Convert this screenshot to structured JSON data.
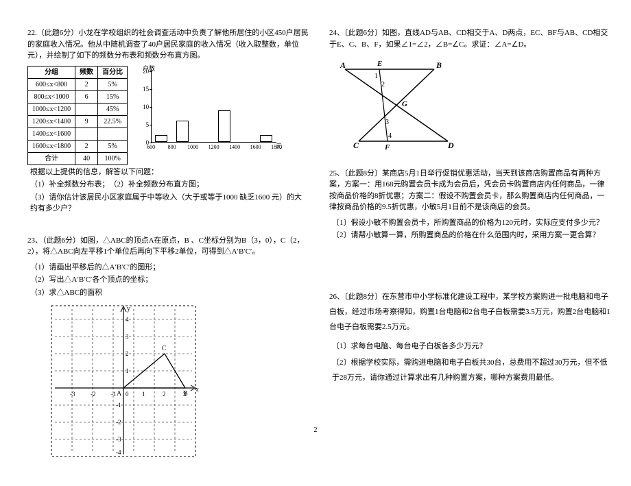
{
  "left": {
    "p22": {
      "title": "22.（此题6分）小龙在学校组织的社会调查活动中负责了解他所居住的小区450户居民的家庭收入情况。他从中随机调查了40户居民家庭的收入情况（收入取整数，单位 元），并绘制了如下的频数分布表和频数分布直方图。",
      "table_head": [
        "分组",
        "频数",
        "百分比"
      ],
      "rows": [
        [
          "600≤x<800",
          "2",
          "5%"
        ],
        [
          "800≤x<1000",
          "6",
          "15%"
        ],
        [
          "1000≤x<1200",
          "",
          "45%"
        ],
        [
          "1200≤x<1400",
          "9",
          "22.5%"
        ],
        [
          "1400≤x<1600",
          "",
          ""
        ],
        [
          "1600≤x<1800",
          "2",
          "5%"
        ],
        [
          "合计",
          "40",
          "100%"
        ]
      ],
      "hint": "根据以上提供的信息，解答以下问题：",
      "q1": "（1）补全频数分布表；　（2）补全频数分布直方图；",
      "q3": "（3）请你估计该居民小区家庭属于中等收入（大于或等于1000 缺乏1600 元）的大约有多少户？",
      "chart": {
        "ylabel": "户数",
        "xlabel": "元",
        "yticks": [
          0,
          5,
          10,
          15,
          20
        ],
        "xticks": [
          600,
          800,
          1000,
          1200,
          1400,
          1600,
          1800
        ],
        "ymax": 20,
        "bars": [
          {
            "x": 700,
            "h": 2
          },
          {
            "x": 900,
            "h": 6
          },
          {
            "x": 1300,
            "h": 9
          },
          {
            "x": 1700,
            "h": 2
          }
        ]
      }
    },
    "p23": {
      "title": "23、（此题6分）如图，△ABC的顶点A在原点，B 、C坐标分别为B（3，0），C（2，2），将△ABC向左平移1个单位后再向下平移2单位，可得到△A′B′C′。",
      "q1": "（1）请画出平移后的△A′B′C′的图形；",
      "q2": "（2）写出△A′B′C′各个顶点的坐标；",
      "q3": "（3）求△ABC的面积",
      "grid": {
        "xlabel": "x",
        "ylabel": "y",
        "xrange": [
          -3,
          3
        ],
        "yrange": [
          -4,
          4
        ],
        "pts": {
          "A": [
            0,
            0
          ],
          "B": [
            3,
            0
          ],
          "C": [
            2,
            2
          ]
        },
        "labels": {
          "A": "A",
          "B": "B",
          "C": "C"
        },
        "xticks": [
          "−3",
          "−2",
          "−1",
          "0",
          "1",
          "2",
          "3"
        ],
        "yticks_neg": [
          "−1",
          "−2",
          "−3",
          "−4"
        ],
        "yticks_pos": [
          "1",
          "2",
          "3",
          "4"
        ]
      }
    }
  },
  "right": {
    "p24": {
      "title": "24、〔此题6分〕如图，直线AD与AB、CD相交于A、D两点，EC、BF与AB、CD相交于E、C、B、F，如果∠1=∠2，∠B=∠C。求证：∠A=∠D。",
      "fig": {
        "A": "A",
        "B": "B",
        "C": "C",
        "D": "D",
        "E": "E",
        "F": "F",
        "G": "G",
        "a1": "1",
        "a2": "2",
        "a3": "3",
        "a4": "4"
      }
    },
    "p25": {
      "title": "25、〔此题8分〕某商店5月1日举行促销优惠活动，当天到该商店购置商品有两种方案，方案一：用168元购置会员卡成为会员后，凭会员卡购置商店内任何商品，一律按商品价格的8折优惠；方案二：假设不购置会员卡，那么购置商店内任何商品，一律按商品价格的9.5折优惠，小敏5月1日前不是该商店的会员。",
      "q1": "〔1〕假设小敏不购置会员卡，所购置商品的价格为120元时，实际应支付多少元？",
      "q2": "〔2〕请帮小敏算一算，所购置商品的价格在什么范围内时，采用方案一更合算？"
    },
    "p26": {
      "title": "26、〔此题8分〕在东营市中小学标准化建设工程中，某学校方案购进一批电脑和电子白板，经过市场考察得知，购置1台电脑和2台电子白板需要3.5万元，购置2台电脑和1台电子白板需要2.5万元。",
      "q1": "〔1〕求每台电脑、每台电子白板各多少万元？",
      "q2": "〔2〕根据学校实际，需购进电脑和电子白板共30台，总费用不超过30万元，但不低于28万元，请你通过计算求出有几种购置方案，哪种方案费用最低。"
    }
  },
  "page_num": "2"
}
